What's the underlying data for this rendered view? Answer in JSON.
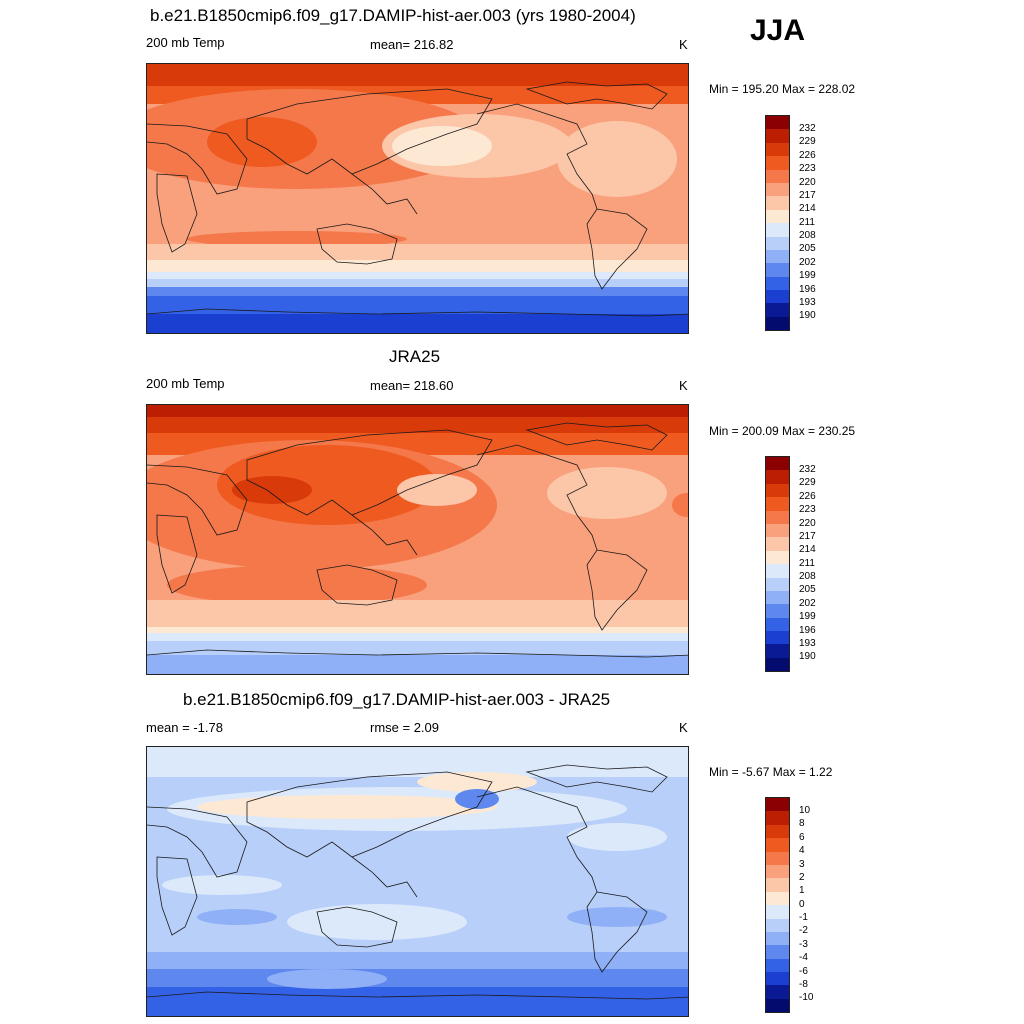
{
  "season": "JJA",
  "panels": [
    {
      "id": "model",
      "title": "b.e21.B1850cmip6.f09_g17.DAMIP-hist-aer.003 (yrs 1980-2004)",
      "left_label": "200 mb Temp",
      "center_label": "mean= 216.82",
      "right_label": "K",
      "min_max": "Min = 195.20 Max = 228.02",
      "colorbar": {
        "labels": [
          "232",
          "229",
          "226",
          "223",
          "220",
          "217",
          "214",
          "211",
          "208",
          "205",
          "202",
          "199",
          "196",
          "193",
          "190"
        ],
        "colors": [
          "#8b0000",
          "#bb1e00",
          "#d93a0a",
          "#ef5a20",
          "#f4784a",
          "#f9a07c",
          "#fcc6a8",
          "#fde8d4",
          "#dce9fb",
          "#b8cffa",
          "#8fb0f6",
          "#5f88ee",
          "#3462e6",
          "#1b3fd0",
          "#0a1a95",
          "#030b6e"
        ]
      }
    },
    {
      "id": "obs",
      "title": "JRA25",
      "left_label": "200 mb Temp",
      "center_label": "mean= 218.60",
      "right_label": "K",
      "min_max": "Min = 200.09 Max = 230.25",
      "colorbar": {
        "labels": [
          "232",
          "229",
          "226",
          "223",
          "220",
          "217",
          "214",
          "211",
          "208",
          "205",
          "202",
          "199",
          "196",
          "193",
          "190"
        ],
        "colors": [
          "#8b0000",
          "#bb1e00",
          "#d93a0a",
          "#ef5a20",
          "#f4784a",
          "#f9a07c",
          "#fcc6a8",
          "#fde8d4",
          "#dce9fb",
          "#b8cffa",
          "#8fb0f6",
          "#5f88ee",
          "#3462e6",
          "#1b3fd0",
          "#0a1a95",
          "#030b6e"
        ]
      }
    },
    {
      "id": "diff",
      "title": "b.e21.B1850cmip6.f09_g17.DAMIP-hist-aer.003 - JRA25",
      "left_label": "mean =  -1.78",
      "center_label": "rmse =   2.09",
      "right_label": "K",
      "min_max": "Min =  -5.67 Max =   1.22",
      "colorbar": {
        "labels": [
          "10",
          "8",
          "6",
          "4",
          "3",
          "2",
          "1",
          "0",
          "-1",
          "-2",
          "-3",
          "-4",
          "-6",
          "-8",
          "-10"
        ],
        "colors": [
          "#8b0000",
          "#bb1e00",
          "#d93a0a",
          "#ef5a20",
          "#f4784a",
          "#f9a07c",
          "#fcc6a8",
          "#fde8d4",
          "#dce9fb",
          "#b8cffa",
          "#8fb0f6",
          "#5f88ee",
          "#3462e6",
          "#1b3fd0",
          "#0a1a95",
          "#030b6e"
        ]
      }
    }
  ],
  "chart_data": [
    {
      "type": "heatmap",
      "title": "b.e21.B1850cmip6.f09_g17.DAMIP-hist-aer.003 (yrs 1980-2004)",
      "variable": "200 mb Temp",
      "units": "K",
      "mean": 216.82,
      "min": 195.2,
      "max": 228.02,
      "contour_levels": [
        190,
        193,
        196,
        199,
        202,
        205,
        208,
        211,
        214,
        217,
        220,
        223,
        226,
        229,
        232
      ],
      "lon_range": [
        30,
        390
      ],
      "lat_range": [
        -90,
        90
      ]
    },
    {
      "type": "heatmap",
      "title": "JRA25",
      "variable": "200 mb Temp",
      "units": "K",
      "mean": 218.6,
      "min": 200.09,
      "max": 230.25,
      "contour_levels": [
        190,
        193,
        196,
        199,
        202,
        205,
        208,
        211,
        214,
        217,
        220,
        223,
        226,
        229,
        232
      ],
      "lon_range": [
        30,
        390
      ],
      "lat_range": [
        -90,
        90
      ]
    },
    {
      "type": "heatmap",
      "title": "b.e21.B1850cmip6.f09_g17.DAMIP-hist-aer.003 - JRA25",
      "units": "K",
      "mean": -1.78,
      "rmse": 2.09,
      "min": -5.67,
      "max": 1.22,
      "contour_levels": [
        -10,
        -8,
        -6,
        -4,
        -3,
        -2,
        -1,
        0,
        1,
        2,
        3,
        4,
        6,
        8,
        10
      ],
      "lon_range": [
        30,
        390
      ],
      "lat_range": [
        -90,
        90
      ]
    }
  ]
}
